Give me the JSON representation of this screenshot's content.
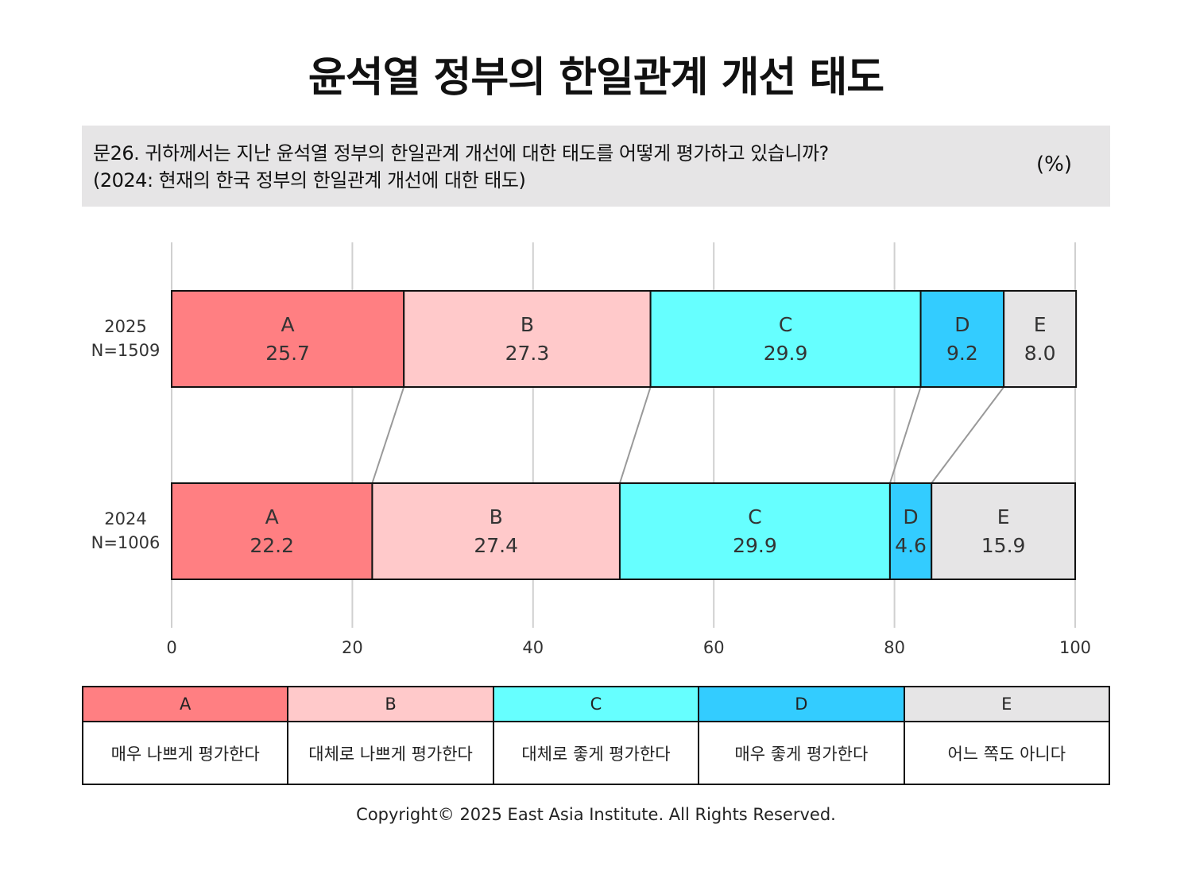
{
  "title": "윤석열 정부의 한일관계 개선 태도",
  "question": {
    "line1": "문26. 귀하께서는 지난 윤석열 정부의 한일관계 개선에 대한 태도를 어떻게 평가하고 있습니까?",
    "line2": "(2024: 현재의 한국 정부의 한일관계 개선에 대한 태도)",
    "unit": "(%)"
  },
  "chart_data": {
    "type": "bar",
    "stacked": true,
    "orientation": "horizontal",
    "xlim": [
      0,
      100
    ],
    "xticks": [
      "0",
      "20",
      "40",
      "60",
      "80",
      "100"
    ],
    "grid": true,
    "categories": [
      "A",
      "B",
      "C",
      "D",
      "E"
    ],
    "colors": [
      "#ff7f82",
      "#ffc9ca",
      "#66ffff",
      "#33ccff",
      "#e6e5e6"
    ],
    "rows": [
      {
        "label1": "2025",
        "label2": "N=1509",
        "values": [
          25.7,
          27.3,
          29.9,
          9.2,
          8.0
        ]
      },
      {
        "label1": "2024",
        "label2": "N=1006",
        "values": [
          22.2,
          27.4,
          29.9,
          4.6,
          15.9
        ]
      }
    ]
  },
  "legend": {
    "keys": [
      "A",
      "B",
      "C",
      "D",
      "E"
    ],
    "descriptions": [
      "매우 나쁘게 평가한다",
      "대체로 나쁘게 평가한다",
      "대체로 좋게 평가한다",
      "매우 좋게 평가한다",
      "어느 쪽도 아니다"
    ],
    "colors": [
      "#ff7f82",
      "#ffc9ca",
      "#66ffff",
      "#33ccff",
      "#e6e5e6"
    ]
  },
  "copyright": "Copyright© 2025 East Asia Institute. All Rights Reserved."
}
